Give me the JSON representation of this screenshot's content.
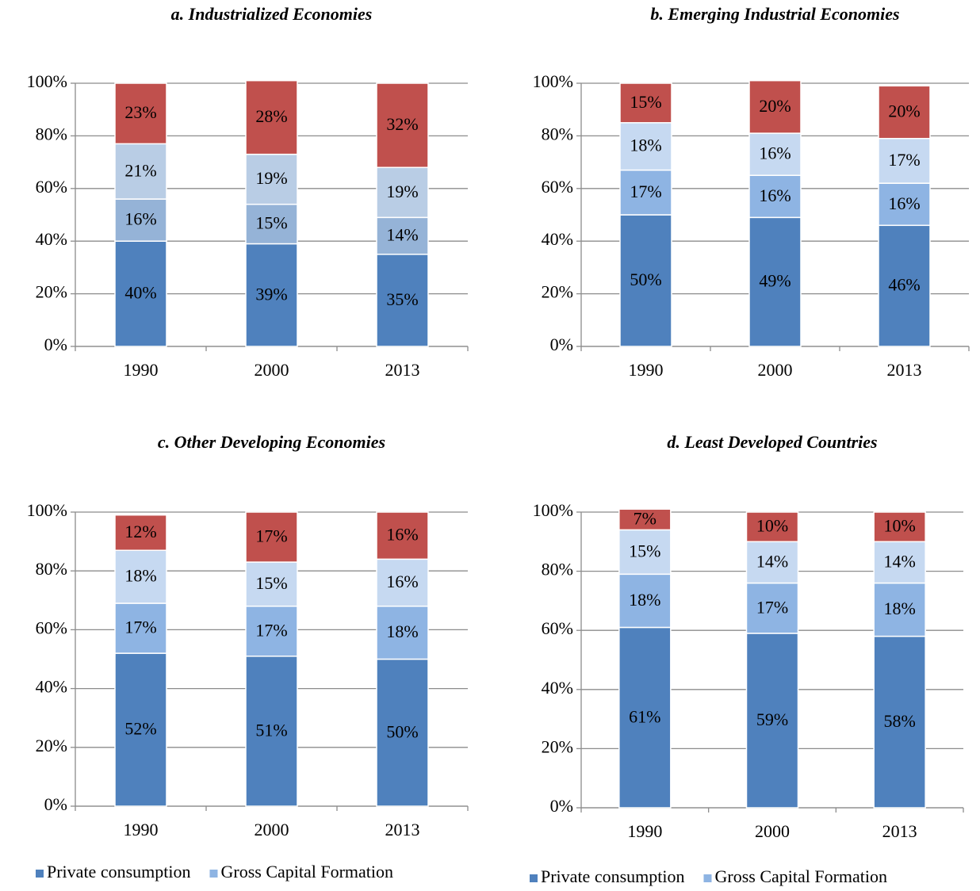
{
  "chart_data": [
    {
      "type": "bar",
      "stacked": true,
      "title": "a. Industrialized Economies",
      "categories": [
        "1990",
        "2000",
        "2013"
      ],
      "series": [
        {
          "name": "Private consumption",
          "color": "#4f81bd",
          "values": [
            40,
            39,
            35
          ],
          "value_labels": [
            "40%",
            "39%",
            "35%"
          ]
        },
        {
          "name": "Gross Capital Formation",
          "color": "#95b3d7",
          "values": [
            16,
            15,
            14
          ],
          "value_labels": [
            "16%",
            "15%",
            "14%"
          ]
        },
        {
          "color": "#b9cde5",
          "values": [
            21,
            19,
            19
          ],
          "value_labels": [
            "21%",
            "19%",
            "19%"
          ]
        },
        {
          "color": "#c0504d",
          "values": [
            23,
            28,
            32
          ],
          "value_labels": [
            "23%",
            "28%",
            "32%"
          ]
        }
      ],
      "ylim": [
        0,
        100
      ],
      "yticks": [
        {
          "value": 0,
          "label": "0%"
        },
        {
          "value": 20,
          "label": "20%"
        },
        {
          "value": 40,
          "label": "40%"
        },
        {
          "value": 60,
          "label": "60%"
        },
        {
          "value": 80,
          "label": "80%"
        },
        {
          "value": 100,
          "label": "100%"
        }
      ],
      "grid": true
    },
    {
      "type": "bar",
      "stacked": true,
      "title": "b. Emerging Industrial Economies",
      "categories": [
        "1990",
        "2000",
        "2013"
      ],
      "series": [
        {
          "name": "Private consumption",
          "color": "#4f81bd",
          "values": [
            50,
            49,
            46
          ],
          "value_labels": [
            "50%",
            "49%",
            "46%"
          ]
        },
        {
          "name": "Gross Capital Formation",
          "color": "#8eb4e3",
          "values": [
            17,
            16,
            16
          ],
          "value_labels": [
            "17%",
            "16%",
            "16%"
          ]
        },
        {
          "color": "#c6d9f1",
          "values": [
            18,
            16,
            17
          ],
          "value_labels": [
            "18%",
            "16%",
            "17%"
          ]
        },
        {
          "color": "#c0504d",
          "values": [
            15,
            20,
            20
          ],
          "value_labels": [
            "15%",
            "20%",
            "20%"
          ]
        }
      ],
      "ylim": [
        0,
        100
      ],
      "yticks": [
        {
          "value": 0,
          "label": "0%"
        },
        {
          "value": 20,
          "label": "20%"
        },
        {
          "value": 40,
          "label": "40%"
        },
        {
          "value": 60,
          "label": "60%"
        },
        {
          "value": 80,
          "label": "80%"
        },
        {
          "value": 100,
          "label": "100%"
        }
      ],
      "grid": true
    },
    {
      "type": "bar",
      "stacked": true,
      "title": "c. Other Developing Economies",
      "categories": [
        "1990",
        "2000",
        "2013"
      ],
      "series": [
        {
          "name": "Private consumption",
          "color": "#4f81bd",
          "values": [
            52,
            51,
            50
          ],
          "value_labels": [
            "52%",
            "51%",
            "50%"
          ]
        },
        {
          "name": "Gross Capital Formation",
          "color": "#8eb4e3",
          "values": [
            17,
            17,
            18
          ],
          "value_labels": [
            "17%",
            "17%",
            "18%"
          ]
        },
        {
          "color": "#c6d9f1",
          "values": [
            18,
            15,
            16
          ],
          "value_labels": [
            "18%",
            "15%",
            "16%"
          ]
        },
        {
          "color": "#c0504d",
          "values": [
            12,
            17,
            16
          ],
          "value_labels": [
            "12%",
            "17%",
            "16%"
          ]
        }
      ],
      "ylim": [
        0,
        100
      ],
      "yticks": [
        {
          "value": 0,
          "label": "0%"
        },
        {
          "value": 20,
          "label": "20%"
        },
        {
          "value": 40,
          "label": "40%"
        },
        {
          "value": 60,
          "label": "60%"
        },
        {
          "value": 80,
          "label": "80%"
        },
        {
          "value": 100,
          "label": "100%"
        }
      ],
      "grid": true,
      "legend": "bottom"
    },
    {
      "type": "bar",
      "stacked": true,
      "title": "d. Least Developed Countries",
      "categories": [
        "1990",
        "2000",
        "2013"
      ],
      "series": [
        {
          "name": "Private consumption",
          "color": "#4f81bd",
          "values": [
            61,
            59,
            58
          ],
          "value_labels": [
            "61%",
            "59%",
            "58%"
          ]
        },
        {
          "name": "Gross Capital Formation",
          "color": "#8eb4e3",
          "values": [
            18,
            17,
            18
          ],
          "value_labels": [
            "18%",
            "17%",
            "18%"
          ]
        },
        {
          "color": "#c6d9f1",
          "values": [
            15,
            14,
            14
          ],
          "value_labels": [
            "15%",
            "14%",
            "14%"
          ]
        },
        {
          "color": "#c0504d",
          "values": [
            7,
            10,
            10
          ],
          "value_labels": [
            "7%",
            "10%",
            "10%"
          ]
        }
      ],
      "ylim": [
        0,
        100
      ],
      "yticks": [
        {
          "value": 0,
          "label": "0%"
        },
        {
          "value": 20,
          "label": "20%"
        },
        {
          "value": 40,
          "label": "40%"
        },
        {
          "value": 60,
          "label": "60%"
        },
        {
          "value": 80,
          "label": "80%"
        },
        {
          "value": 100,
          "label": "100%"
        }
      ],
      "grid": true,
      "legend": "bottom"
    }
  ]
}
